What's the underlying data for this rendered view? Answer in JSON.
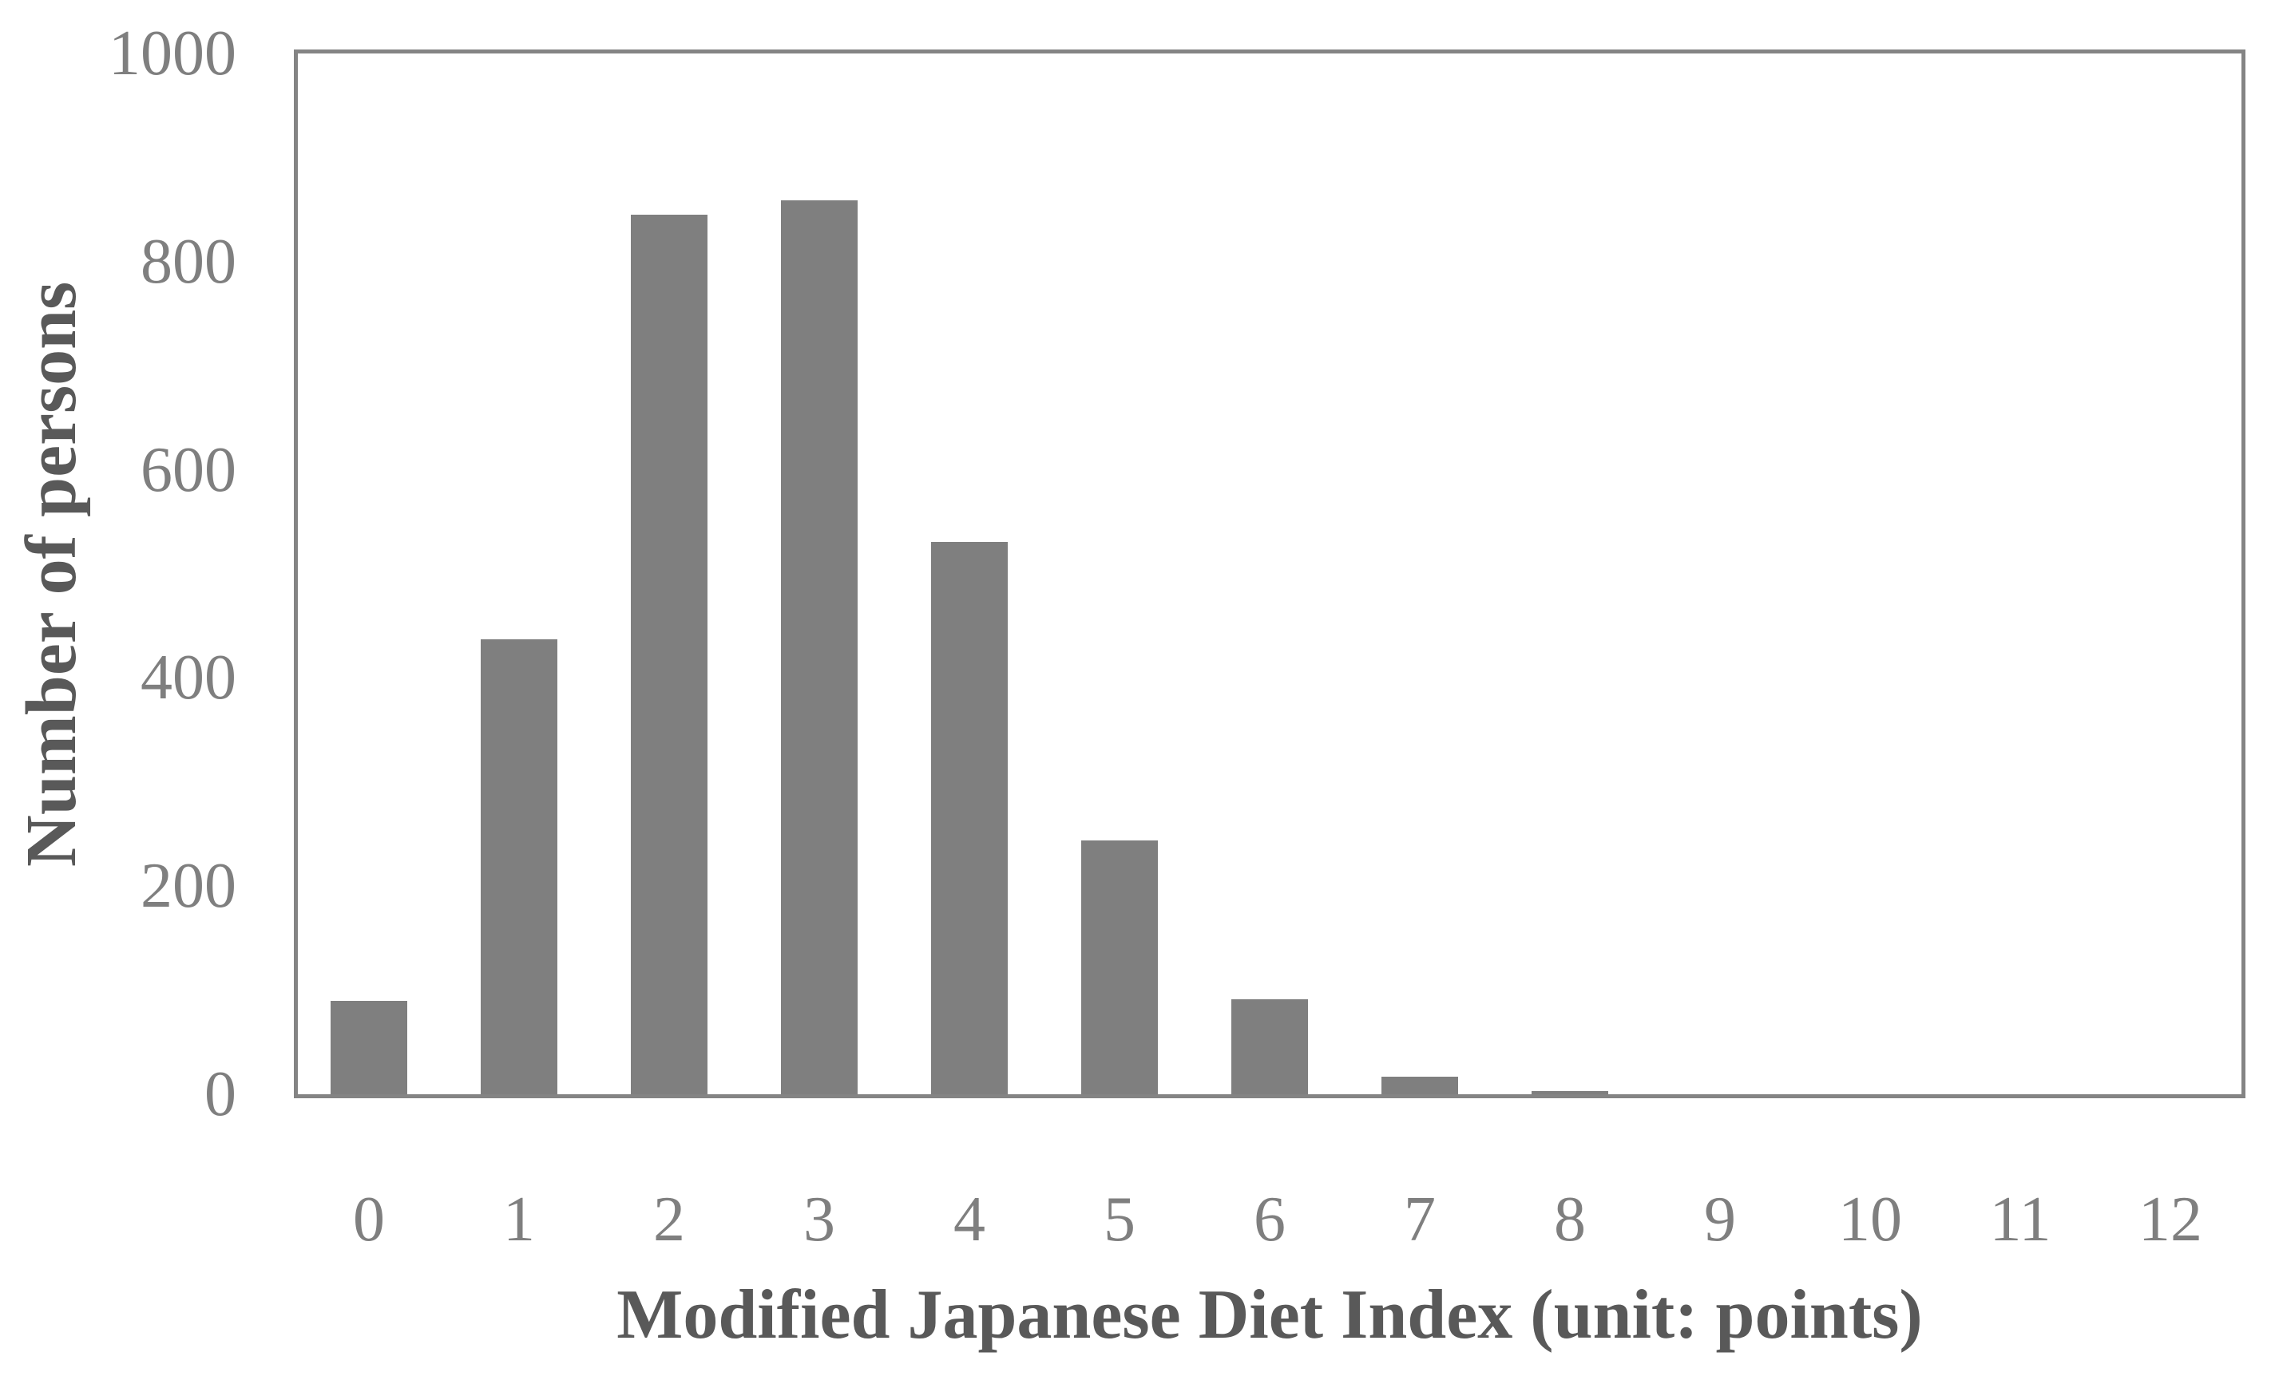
{
  "chart_data": {
    "type": "bar",
    "title": "",
    "categories": [
      "0",
      "1",
      "2",
      "3",
      "4",
      "5",
      "6",
      "7",
      "8",
      "9",
      "10",
      "11",
      "12"
    ],
    "values": [
      90,
      437,
      845,
      859,
      531,
      244,
      91,
      17,
      3,
      0,
      0,
      0,
      0
    ],
    "xlabel": "Modified Japanese Diet Index (unit: points)",
    "ylabel": "Number of persons",
    "ylim": [
      0,
      1000
    ],
    "yticks": [
      0,
      200,
      400,
      600,
      800,
      1000
    ],
    "grid": false,
    "legend": "none",
    "colors": {
      "bar": "#7f7f7f",
      "frame": "#848484",
      "tick_label": "#7f7f7f",
      "axis_title": "#595959",
      "background": "#ffffff"
    }
  }
}
